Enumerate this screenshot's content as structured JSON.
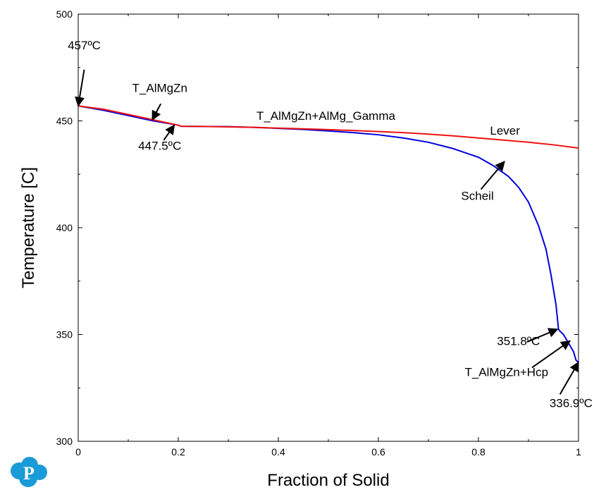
{
  "chart_data": {
    "type": "line",
    "title": "",
    "xlabel": "Fraction of Solid",
    "ylabel": "Temperature [C]",
    "xlim": [
      0,
      1
    ],
    "ylim": [
      300,
      500
    ],
    "x_ticks": [
      0,
      0.2,
      0.4,
      0.6,
      0.8,
      1
    ],
    "x_tick_labels": [
      "0",
      "0.2",
      "0.4",
      "0.6",
      "0.8",
      "1"
    ],
    "y_ticks": [
      300,
      350,
      400,
      450,
      500
    ],
    "y_tick_labels": [
      "300",
      "350",
      "400",
      "450",
      "500"
    ],
    "grid": false,
    "series": [
      {
        "label_ref": "Scheil",
        "color": "#0000dd",
        "x": [
          0,
          0.05,
          0.1,
          0.15,
          0.2,
          0.205,
          0.25,
          0.3,
          0.35,
          0.4,
          0.45,
          0.5,
          0.55,
          0.6,
          0.65,
          0.7,
          0.75,
          0.8,
          0.83,
          0.86,
          0.88,
          0.9,
          0.92,
          0.935,
          0.945,
          0.955,
          0.96,
          0.962,
          0.97,
          0.98,
          0.99,
          0.995,
          1.0
        ],
        "y": [
          457,
          455,
          452.5,
          450,
          448,
          447.5,
          447.4,
          447.3,
          447.0,
          446.5,
          446.0,
          445.3,
          444.5,
          443.5,
          442.0,
          440.0,
          437.0,
          433.0,
          429.0,
          424.0,
          419.0,
          412.0,
          401.0,
          390.0,
          378.0,
          364.0,
          352.5,
          351.8,
          350.0,
          346.0,
          342.0,
          338.0,
          336.9
        ]
      },
      {
        "label_ref": "Lever",
        "color": "#ee1111",
        "x": [
          0,
          0.05,
          0.1,
          0.15,
          0.2,
          0.205,
          0.25,
          0.3,
          0.35,
          0.4,
          0.45,
          0.5,
          0.55,
          0.6,
          0.65,
          0.7,
          0.75,
          0.8,
          0.85,
          0.9,
          0.95,
          1.0
        ],
        "y": [
          457,
          455.5,
          453,
          450.5,
          448,
          447.5,
          447.4,
          447.2,
          447.0,
          446.6,
          446.3,
          445.9,
          445.5,
          445.0,
          444.5,
          443.8,
          443.0,
          442.0,
          441.0,
          440.0,
          438.8,
          437.3
        ]
      }
    ],
    "annotations": [
      {
        "text": "457ºC",
        "target": [
          0,
          457
        ],
        "text_at": [
          0.012,
          483.5
        ],
        "arrow_from": [
          0.012,
          474
        ]
      },
      {
        "text": "T_AlMgZn",
        "target": [
          0.148,
          450.5
        ],
        "text_at": [
          0.163,
          463.5
        ],
        "arrow_from": [
          0.165,
          458
        ]
      },
      {
        "text": "447.5ºC",
        "target": [
          0.192,
          448
        ],
        "text_at": [
          0.163,
          436.5
        ],
        "arrow_from": [
          0.171,
          441
        ]
      },
      {
        "text": "T_AlMgZn+AlMg_Gamma",
        "target": null,
        "text_at": [
          0.495,
          450.5
        ],
        "arrow_from": null
      },
      {
        "text": "Lever",
        "target": null,
        "text_at": [
          0.853,
          443.5
        ],
        "arrow_from": null
      },
      {
        "text": "Scheil",
        "target": [
          0.852,
          431
        ],
        "text_at": [
          0.798,
          413
        ],
        "arrow_from": [
          0.805,
          418
        ]
      },
      {
        "text": "351.8ºC",
        "target": [
          0.958,
          352.5
        ],
        "text_at": [
          0.88,
          345
        ],
        "arrow_from": [
          0.897,
          346.5
        ]
      },
      {
        "text": "T_AlMgZn+Hcp",
        "target": [
          0.983,
          347
        ],
        "text_at": [
          0.856,
          330.5
        ],
        "arrow_from": [
          0.907,
          334.5
        ]
      },
      {
        "text": "336.9ºC",
        "target": [
          1.0,
          337
        ],
        "text_at": [
          0.985,
          316
        ],
        "arrow_from": [
          0.963,
          322
        ]
      }
    ]
  },
  "logo": {
    "name": "pandat-logo",
    "letter": "P",
    "color": "#1a9bd7"
  }
}
